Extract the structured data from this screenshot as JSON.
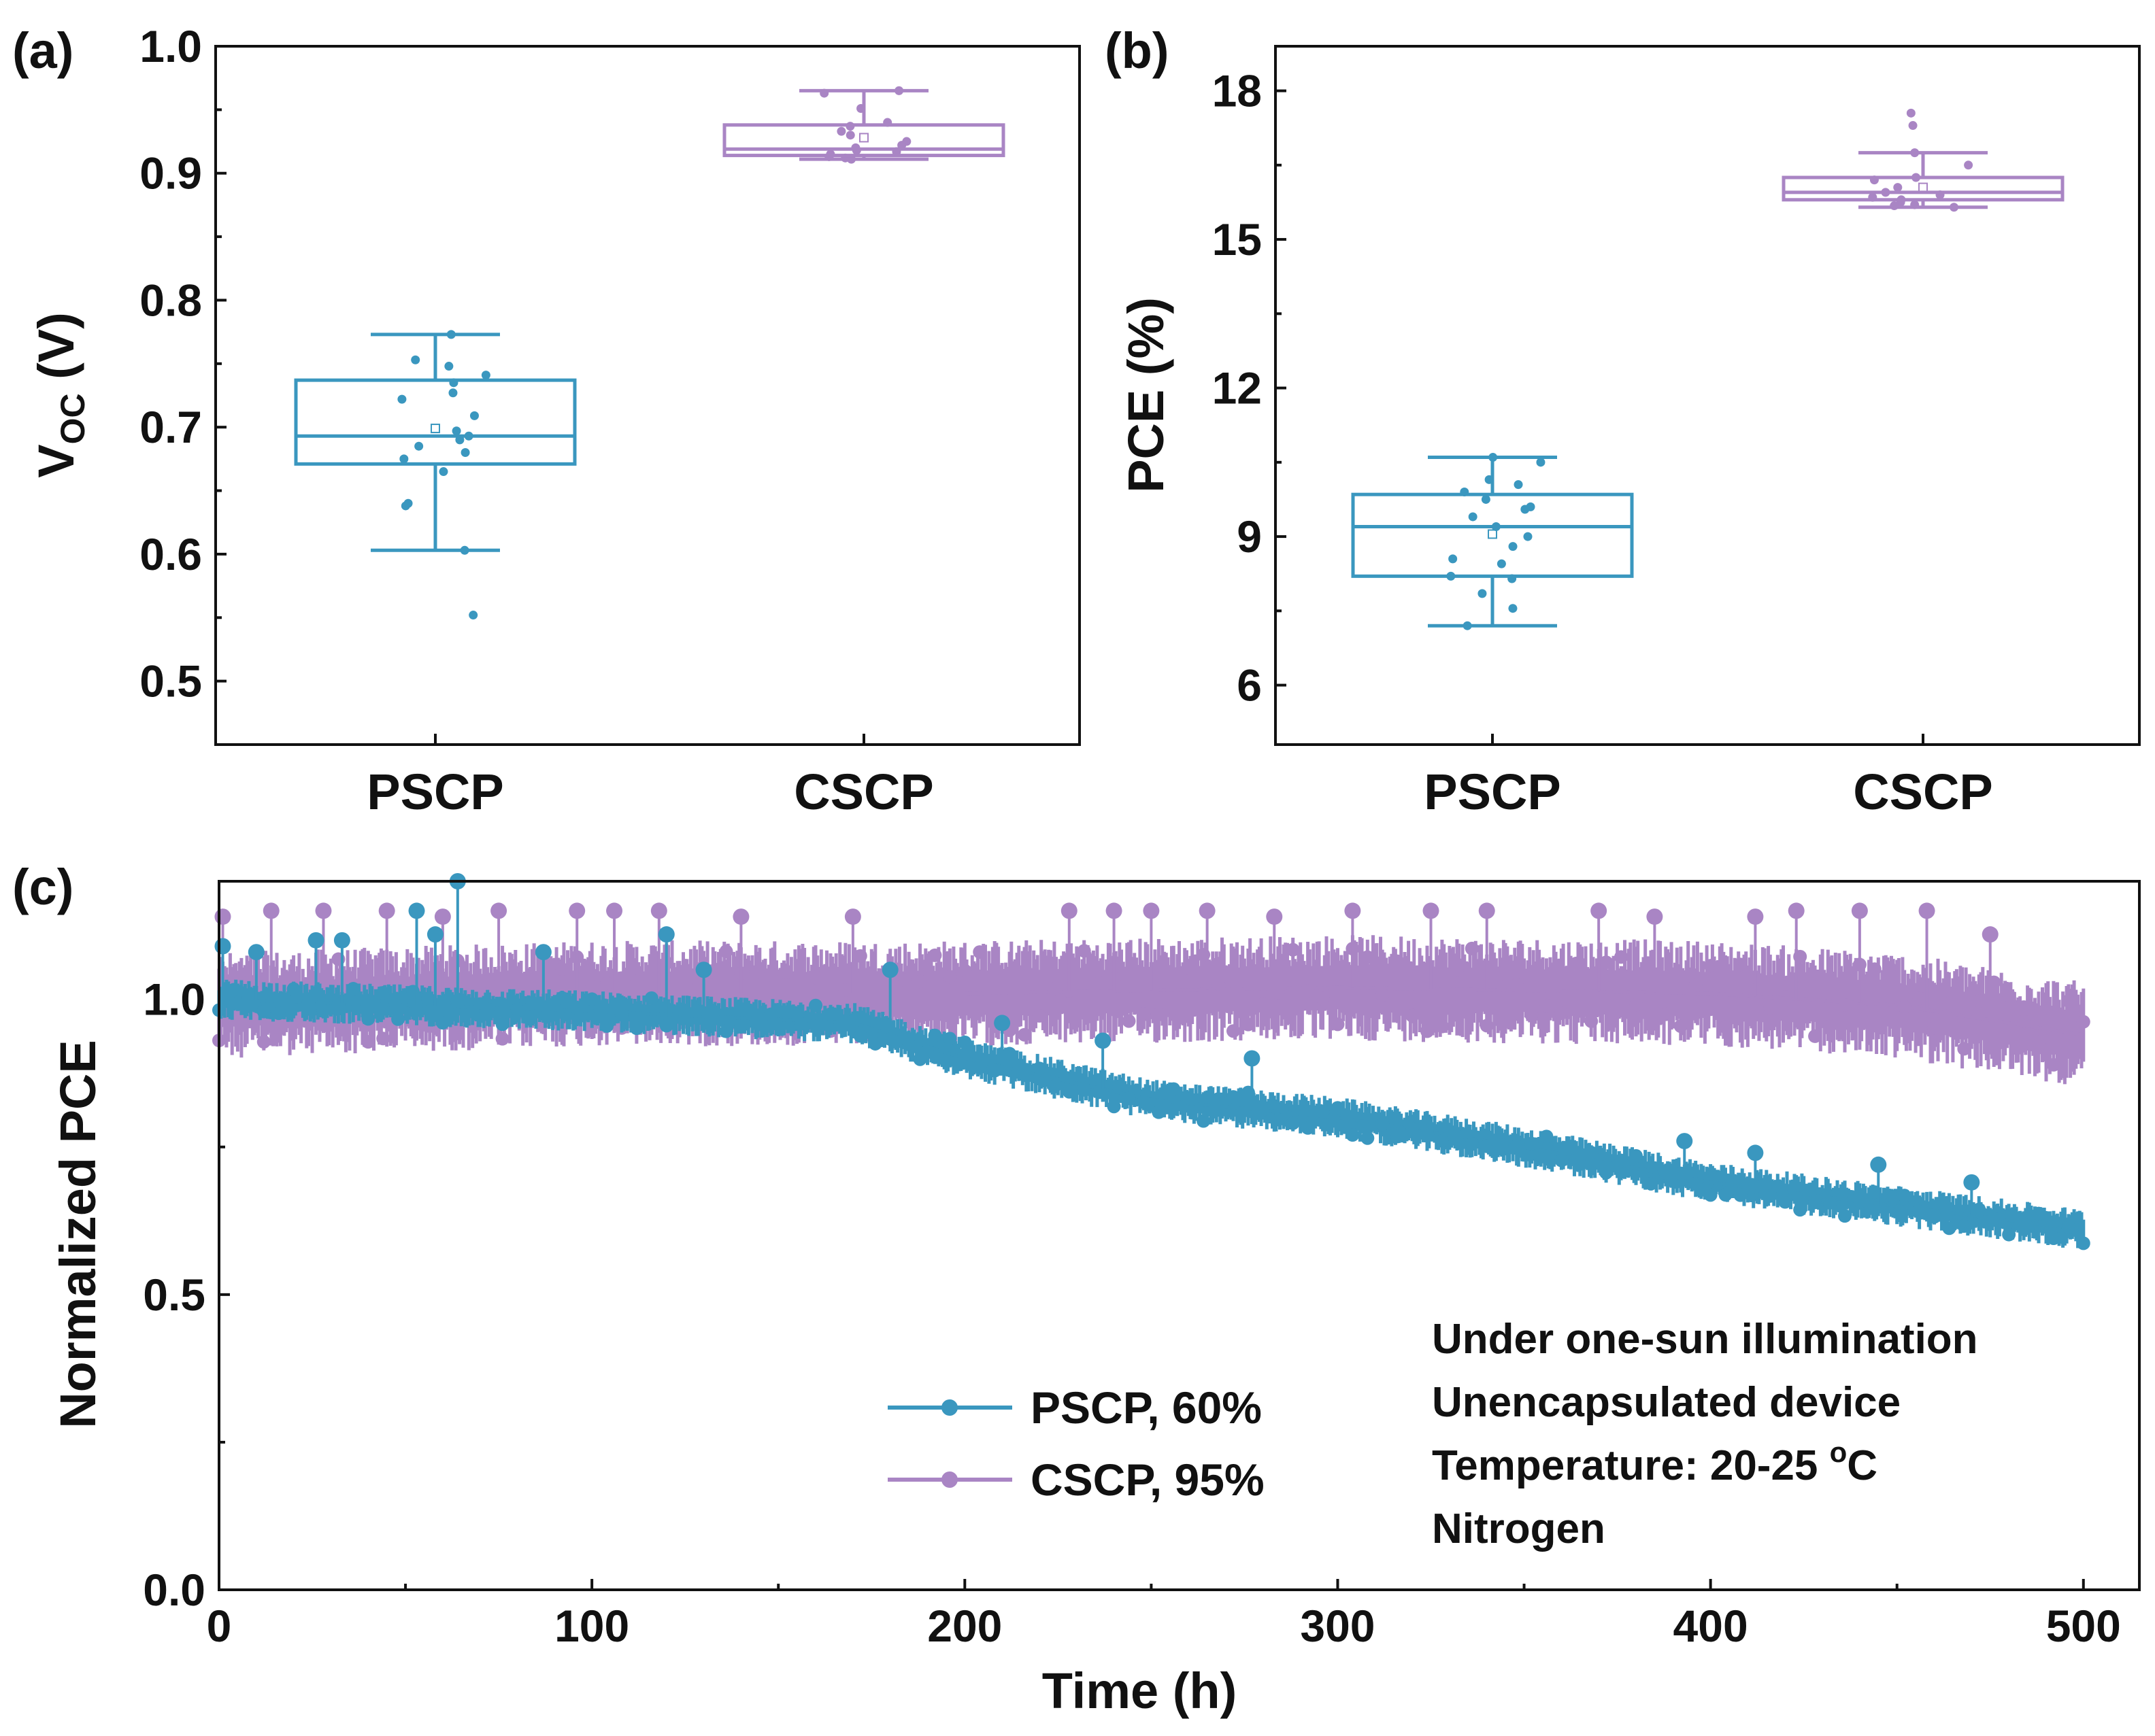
{
  "colors": {
    "pscp": "#3a97bf",
    "cscp": "#a985c4",
    "axis": "#111111"
  },
  "chart_data": [
    {
      "id": "a",
      "type": "box",
      "panel_label": "(a)",
      "ylabel_main": "V",
      "ylabel_sub": "OC",
      "ylabel_unit": " (V)",
      "xlabel": "",
      "ylim": [
        0.45,
        1.0
      ],
      "yticks": [
        0.5,
        0.6,
        0.7,
        0.8,
        0.9,
        1.0
      ],
      "ytick_labels": [
        "0.5",
        "0.6",
        "0.7",
        "0.8",
        "0.9",
        "1.0"
      ],
      "categories": [
        "PSCP",
        "CSCP"
      ],
      "series": [
        {
          "name": "PSCP",
          "color_key": "pscp",
          "box": {
            "whisker_low": 0.603,
            "q1": 0.671,
            "median": 0.693,
            "q3": 0.737,
            "whisker_high": 0.773,
            "mean": 0.699
          },
          "points": [
            0.773,
            0.753,
            0.748,
            0.741,
            0.735,
            0.727,
            0.722,
            0.709,
            0.697,
            0.693,
            0.69,
            0.685,
            0.68,
            0.675,
            0.665,
            0.64,
            0.638,
            0.603,
            0.552
          ]
        },
        {
          "name": "CSCP",
          "color_key": "cscp",
          "box": {
            "whisker_low": 0.911,
            "q1": 0.914,
            "median": 0.919,
            "q3": 0.938,
            "whisker_high": 0.965,
            "mean": 0.928
          },
          "points": [
            0.965,
            0.963,
            0.951,
            0.94,
            0.937,
            0.933,
            0.93,
            0.925,
            0.922,
            0.92,
            0.918,
            0.917,
            0.915,
            0.913,
            0.912,
            0.911
          ]
        }
      ]
    },
    {
      "id": "b",
      "type": "box",
      "panel_label": "(b)",
      "ylabel": "PCE (%)",
      "xlabel": "",
      "ylim": [
        4.8,
        18.9
      ],
      "yticks": [
        6,
        9,
        12,
        15,
        18
      ],
      "ytick_labels": [
        "6",
        "9",
        "12",
        "15",
        "18"
      ],
      "categories": [
        "PSCP",
        "CSCP"
      ],
      "series": [
        {
          "name": "PSCP",
          "color_key": "pscp",
          "box": {
            "whisker_low": 7.2,
            "q1": 8.2,
            "median": 9.2,
            "q3": 9.85,
            "whisker_high": 10.6,
            "mean": 9.05
          },
          "points": [
            10.6,
            10.5,
            10.15,
            10.05,
            9.9,
            9.75,
            9.6,
            9.55,
            9.4,
            9.2,
            9.0,
            8.8,
            8.55,
            8.45,
            8.2,
            8.15,
            7.85,
            7.55,
            7.2
          ]
        },
        {
          "name": "CSCP",
          "color_key": "cscp",
          "box": {
            "whisker_low": 15.65,
            "q1": 15.8,
            "median": 15.95,
            "q3": 16.25,
            "whisker_high": 16.75,
            "mean": 16.05
          },
          "points": [
            17.55,
            17.3,
            16.75,
            16.5,
            16.25,
            16.2,
            16.05,
            15.95,
            15.9,
            15.85,
            15.8,
            15.75,
            15.7,
            15.68,
            15.65
          ]
        }
      ]
    },
    {
      "id": "c",
      "type": "line",
      "panel_label": "(c)",
      "xlabel": "Time (h)",
      "ylabel": "Normalized PCE",
      "xlim": [
        0,
        515
      ],
      "ylim": [
        0,
        1.2
      ],
      "xticks": [
        0,
        100,
        200,
        300,
        400,
        500
      ],
      "xtick_labels": [
        "0",
        "100",
        "200",
        "300",
        "400",
        "500"
      ],
      "yticks": [
        0.0,
        0.5,
        1.0
      ],
      "ytick_labels": [
        "0.0",
        "0.5",
        "1.0"
      ],
      "legend_position": "center-bottom",
      "series": [
        {
          "name": "PSCP, 60%",
          "color_key": "pscp",
          "trend": [
            [
              0,
              1.0
            ],
            [
              100,
              0.98
            ],
            [
              170,
              0.96
            ],
            [
              200,
              0.9
            ],
            [
              250,
              0.83
            ],
            [
              300,
              0.8
            ],
            [
              350,
              0.75
            ],
            [
              400,
              0.69
            ],
            [
              450,
              0.65
            ],
            [
              500,
              0.61
            ]
          ],
          "band_halfwidth": 0.035,
          "spikes": [
            [
              1,
              1.09
            ],
            [
              10,
              1.08
            ],
            [
              26,
              1.1
            ],
            [
              33,
              1.1
            ],
            [
              53,
              1.15
            ],
            [
              58,
              1.11
            ],
            [
              64,
              1.2
            ],
            [
              87,
              1.08
            ],
            [
              120,
              1.11
            ],
            [
              130,
              1.05
            ],
            [
              180,
              1.05
            ],
            [
              210,
              0.96
            ],
            [
              237,
              0.93
            ],
            [
              277,
              0.9
            ],
            [
              393,
              0.76
            ],
            [
              412,
              0.74
            ],
            [
              445,
              0.72
            ],
            [
              470,
              0.69
            ]
          ]
        },
        {
          "name": "CSCP, 95%",
          "color_key": "cscp",
          "trend": [
            [
              0,
              0.99
            ],
            [
              100,
              1.01
            ],
            [
              200,
              1.01
            ],
            [
              300,
              1.02
            ],
            [
              400,
              1.01
            ],
            [
              450,
              0.99
            ],
            [
              500,
              0.94
            ]
          ],
          "band_halfwidth": 0.09,
          "spikes": [
            [
              1,
              1.14
            ],
            [
              14,
              1.15
            ],
            [
              28,
              1.15
            ],
            [
              45,
              1.15
            ],
            [
              60,
              1.14
            ],
            [
              75,
              1.15
            ],
            [
              96,
              1.15
            ],
            [
              106,
              1.15
            ],
            [
              118,
              1.15
            ],
            [
              140,
              1.14
            ],
            [
              170,
              1.14
            ],
            [
              228,
              1.15
            ],
            [
              240,
              1.15
            ],
            [
              250,
              1.15
            ],
            [
              265,
              1.15
            ],
            [
              283,
              1.14
            ],
            [
              304,
              1.15
            ],
            [
              325,
              1.15
            ],
            [
              340,
              1.15
            ],
            [
              370,
              1.15
            ],
            [
              385,
              1.14
            ],
            [
              412,
              1.14
            ],
            [
              423,
              1.15
            ],
            [
              440,
              1.15
            ],
            [
              458,
              1.15
            ],
            [
              475,
              1.11
            ]
          ]
        }
      ],
      "annotations": [
        {
          "text": "Under one-sun illumination"
        },
        {
          "text": "Unencapsulated device"
        },
        {
          "text": "Temperature: 20-25 ",
          "sup": "o",
          "tail": "C"
        },
        {
          "text": "Nitrogen"
        }
      ]
    }
  ]
}
